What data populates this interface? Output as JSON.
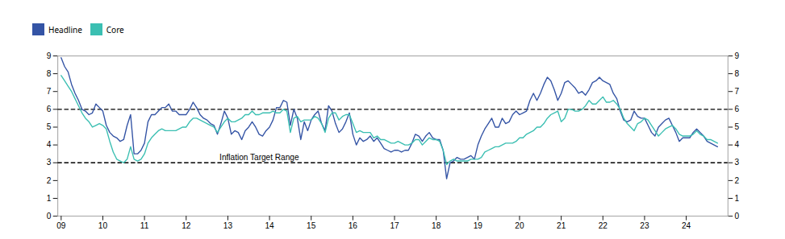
{
  "chart_data": {
    "type": "line",
    "x": [
      2009,
      2009.0833333333,
      2009.1666666667,
      2009.25,
      2009.3333333333,
      2009.4166666667,
      2009.5,
      2009.5833333333,
      2009.6666666667,
      2009.75,
      2009.8333333333,
      2009.9166666667,
      2010,
      2010.0833333333,
      2010.1666666667,
      2010.25,
      2010.3333333333,
      2010.4166666667,
      2010.5,
      2010.5833333333,
      2010.6666666667,
      2010.75,
      2010.8333333333,
      2010.9166666667,
      2011,
      2011.0833333333,
      2011.1666666667,
      2011.25,
      2011.3333333333,
      2011.4166666667,
      2011.5,
      2011.5833333333,
      2011.6666666667,
      2011.75,
      2011.8333333333,
      2011.9166666667,
      2012,
      2012.0833333333,
      2012.1666666667,
      2012.25,
      2012.3333333333,
      2012.4166666667,
      2012.5,
      2012.5833333333,
      2012.6666666667,
      2012.75,
      2012.8333333333,
      2012.9166666667,
      2013,
      2013.0833333333,
      2013.1666666667,
      2013.25,
      2013.3333333333,
      2013.4166666667,
      2013.5,
      2013.5833333333,
      2013.6666666667,
      2013.75,
      2013.8333333333,
      2013.9166666667,
      2014,
      2014.0833333333,
      2014.1666666667,
      2014.25,
      2014.3333333333,
      2014.4166666667,
      2014.5,
      2014.5833333333,
      2014.6666666667,
      2014.75,
      2014.8333333333,
      2014.9166666667,
      2015,
      2015.0833333333,
      2015.1666666667,
      2015.25,
      2015.3333333333,
      2015.4166666667,
      2015.5,
      2015.5833333333,
      2015.6666666667,
      2015.75,
      2015.8333333333,
      2015.9166666667,
      2016,
      2016.0833333333,
      2016.1666666667,
      2016.25,
      2016.3333333333,
      2016.4166666667,
      2016.5,
      2016.5833333333,
      2016.6666666667,
      2016.75,
      2016.8333333333,
      2016.9166666667,
      2017,
      2017.0833333333,
      2017.1666666667,
      2017.25,
      2017.3333333333,
      2017.4166666667,
      2017.5,
      2017.5833333333,
      2017.6666666667,
      2017.75,
      2017.8333333333,
      2017.9166666667,
      2018,
      2018.0833333333,
      2018.1666666667,
      2018.25,
      2018.3333333333,
      2018.4166666667,
      2018.5,
      2018.5833333333,
      2018.6666666667,
      2018.75,
      2018.8333333333,
      2018.9166666667,
      2019,
      2019.0833333333,
      2019.1666666667,
      2019.25,
      2019.3333333333,
      2019.4166666667,
      2019.5,
      2019.5833333333,
      2019.6666666667,
      2019.75,
      2019.8333333333,
      2019.9166666667,
      2020,
      2020.0833333333,
      2020.1666666667,
      2020.25,
      2020.3333333333,
      2020.4166666667,
      2020.5,
      2020.5833333333,
      2020.6666666667,
      2020.75,
      2020.8333333333,
      2020.9166666667,
      2021,
      2021.0833333333,
      2021.1666666667,
      2021.25,
      2021.3333333333,
      2021.4166666667,
      2021.5,
      2021.5833333333,
      2021.6666666667,
      2021.75,
      2021.8333333333,
      2021.9166666667,
      2022,
      2022.0833333333,
      2022.1666666667,
      2022.25,
      2022.3333333333,
      2022.4166666667,
      2022.5,
      2022.5833333333,
      2022.6666666667,
      2022.75,
      2022.8333333333,
      2022.9166666667,
      2023,
      2023.0833333333,
      2023.1666666667,
      2023.25,
      2023.3333333333,
      2023.4166666667,
      2023.5,
      2023.5833333333,
      2023.6666666667,
      2023.75,
      2023.8333333333,
      2023.9166666667,
      2024,
      2024.0833333333,
      2024.1666666667,
      2024.25,
      2024.3333333333,
      2024.4166666667,
      2024.5,
      2024.5833333333,
      2024.6666666667,
      2024.75
    ],
    "series": [
      {
        "name": "Headline",
        "color": "#3454a5",
        "values": [
          8.9,
          8.4,
          8.1,
          7.4,
          6.9,
          6.5,
          6.0,
          5.9,
          5.7,
          5.8,
          6.3,
          6.1,
          5.9,
          5.1,
          4.7,
          4.5,
          4.4,
          4.2,
          4.3,
          5.1,
          5.7,
          3.5,
          3.5,
          3.7,
          4.1,
          5.3,
          5.7,
          5.7,
          5.9,
          6.1,
          6.1,
          6.3,
          5.9,
          5.9,
          5.7,
          5.7,
          5.7,
          6.0,
          6.4,
          6.1,
          5.7,
          5.5,
          5.4,
          5.2,
          5.1,
          4.6,
          5.2,
          5.9,
          5.5,
          4.6,
          4.8,
          4.7,
          4.3,
          4.8,
          5.0,
          5.3,
          5.0,
          4.6,
          4.5,
          4.8,
          5.0,
          5.4,
          6.1,
          6.1,
          6.5,
          6.4,
          5.1,
          6.0,
          5.5,
          4.3,
          5.3,
          4.8,
          5.4,
          5.7,
          5.9,
          5.2,
          4.8,
          6.2,
          5.9,
          5.2,
          4.7,
          4.9,
          5.3,
          5.8,
          4.6,
          4.0,
          4.4,
          4.2,
          4.3,
          4.5,
          4.2,
          4.4,
          4.1,
          3.8,
          3.7,
          3.6,
          3.7,
          3.7,
          3.6,
          3.7,
          3.7,
          4.1,
          4.6,
          4.5,
          4.2,
          4.5,
          4.7,
          4.4,
          4.3,
          4.3,
          3.7,
          2.1,
          3.0,
          3.1,
          3.3,
          3.2,
          3.2,
          3.3,
          3.4,
          3.2,
          4.0,
          4.5,
          4.9,
          5.2,
          5.5,
          5.0,
          5.0,
          5.5,
          5.2,
          5.3,
          5.7,
          5.9,
          5.7,
          5.8,
          5.9,
          6.5,
          6.9,
          6.5,
          6.9,
          7.4,
          7.8,
          7.6,
          7.1,
          6.5,
          6.9,
          7.5,
          7.6,
          7.4,
          7.2,
          6.9,
          7.0,
          6.8,
          7.1,
          7.5,
          7.6,
          7.8,
          7.6,
          7.5,
          7.4,
          6.9,
          6.6,
          5.9,
          5.4,
          5.3,
          5.4,
          5.9,
          5.6,
          5.5,
          5.5,
          5.1,
          4.7,
          4.5,
          5.0,
          5.2,
          5.4,
          5.5,
          5.1,
          4.7,
          4.2,
          4.4,
          4.4,
          4.4,
          4.7,
          4.9,
          4.7,
          4.5,
          4.2,
          4.1,
          4.0,
          3.9
        ]
      },
      {
        "name": "Core",
        "color": "#3bbfb2",
        "values": [
          7.9,
          7.6,
          7.3,
          7.0,
          6.6,
          6.2,
          5.8,
          5.5,
          5.3,
          5.0,
          5.1,
          5.2,
          5.1,
          4.9,
          4.2,
          3.6,
          3.2,
          3.1,
          3.0,
          3.2,
          3.9,
          3.2,
          3.1,
          3.2,
          3.5,
          4.1,
          4.4,
          4.6,
          4.8,
          4.9,
          4.8,
          4.8,
          4.8,
          4.8,
          4.9,
          5.0,
          5.0,
          5.3,
          5.5,
          5.5,
          5.4,
          5.3,
          5.2,
          5.1,
          5.0,
          4.7,
          5.0,
          5.3,
          5.5,
          5.3,
          5.3,
          5.4,
          5.5,
          5.7,
          5.7,
          5.9,
          5.7,
          5.7,
          5.8,
          5.8,
          5.8,
          5.9,
          5.8,
          5.8,
          6.0,
          5.9,
          4.7,
          5.5,
          5.6,
          5.3,
          5.4,
          5.4,
          5.4,
          5.6,
          5.5,
          5.2,
          4.7,
          5.5,
          5.8,
          5.8,
          5.4,
          5.6,
          5.7,
          5.7,
          5.2,
          4.7,
          4.8,
          4.7,
          4.7,
          4.7,
          4.4,
          4.5,
          4.3,
          4.3,
          4.2,
          4.1,
          4.1,
          4.2,
          4.1,
          4.0,
          4.0,
          4.1,
          4.3,
          4.3,
          4.0,
          4.2,
          4.4,
          4.3,
          4.3,
          4.2,
          3.7,
          2.9,
          3.1,
          3.2,
          3.1,
          3.1,
          3.1,
          3.1,
          3.2,
          3.2,
          3.2,
          3.3,
          3.6,
          3.7,
          3.8,
          3.9,
          3.9,
          4.0,
          4.1,
          4.1,
          4.1,
          4.2,
          4.4,
          4.4,
          4.6,
          4.7,
          4.8,
          5.0,
          5.0,
          5.2,
          5.5,
          5.7,
          5.8,
          5.9,
          5.3,
          5.5,
          6.0,
          6.0,
          5.9,
          5.9,
          6.0,
          6.2,
          6.5,
          6.3,
          6.3,
          6.5,
          6.7,
          6.4,
          6.4,
          6.5,
          6.3,
          6.0,
          5.5,
          5.2,
          5.0,
          4.8,
          5.2,
          5.3,
          5.5,
          5.4,
          5.1,
          4.8,
          4.5,
          4.7,
          4.9,
          5.0,
          5.1,
          4.9,
          4.6,
          4.5,
          4.5,
          4.5,
          4.6,
          4.8,
          4.6,
          4.5,
          4.3,
          4.3,
          4.2,
          4.1
        ]
      }
    ],
    "hlines": [
      3,
      6
    ],
    "hline_color": "black",
    "annotations": [
      {
        "text": "Inflation Target Range",
        "x": 2012.8,
        "y": 3.15
      }
    ],
    "xlim": [
      2008.92,
      2025.0
    ],
    "xticks": [
      {
        "value": 2009,
        "label": "09"
      },
      {
        "value": 2010,
        "label": "10"
      },
      {
        "value": 2011,
        "label": "11"
      },
      {
        "value": 2012,
        "label": "12"
      },
      {
        "value": 2013,
        "label": "13"
      },
      {
        "value": 2014,
        "label": "14"
      },
      {
        "value": 2015,
        "label": "15"
      },
      {
        "value": 2016,
        "label": "16"
      },
      {
        "value": 2017,
        "label": "17"
      },
      {
        "value": 2018,
        "label": "18"
      },
      {
        "value": 2019,
        "label": "19"
      },
      {
        "value": 2020,
        "label": "20"
      },
      {
        "value": 2021,
        "label": "21"
      },
      {
        "value": 2022,
        "label": "22"
      },
      {
        "value": 2023,
        "label": "23"
      },
      {
        "value": 2024,
        "label": "24"
      }
    ],
    "ylim": [
      0,
      9
    ],
    "yticks": [
      0,
      1,
      2,
      3,
      4,
      5,
      6,
      7,
      8,
      9
    ],
    "y2lim": [
      0,
      9
    ],
    "y2ticks": [
      0,
      1,
      2,
      3,
      4,
      5,
      6,
      7,
      8,
      9
    ],
    "grid": false,
    "legend": "top"
  }
}
